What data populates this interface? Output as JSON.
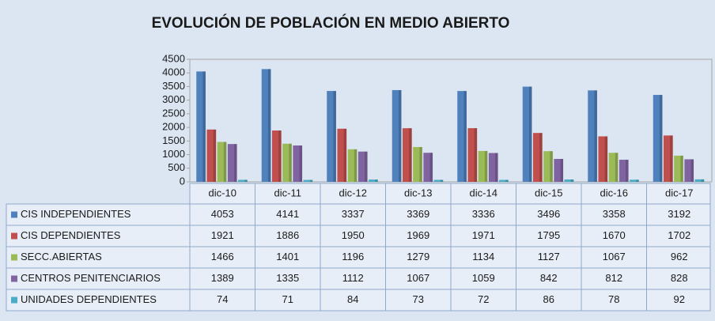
{
  "chart_data": {
    "type": "bar",
    "title": "EVOLUCIÓN DE POBLACIÓN EN MEDIO ABIERTO",
    "categories": [
      "dic-10",
      "dic-11",
      "dic-12",
      "dic-13",
      "dic-14",
      "dic-15",
      "dic-16",
      "dic-17"
    ],
    "series": [
      {
        "name": "CIS INDEPENDIENTES",
        "color": "#4f81bd",
        "values": [
          4053,
          4141,
          3337,
          3369,
          3336,
          3496,
          3358,
          3192
        ]
      },
      {
        "name": "CIS DEPENDIENTES",
        "color": "#c0504d",
        "values": [
          1921,
          1886,
          1950,
          1969,
          1971,
          1795,
          1670,
          1702
        ]
      },
      {
        "name": "SECC.ABIERTAS",
        "color": "#9bbb59",
        "values": [
          1466,
          1401,
          1196,
          1279,
          1134,
          1127,
          1067,
          962
        ]
      },
      {
        "name": "CENTROS PENITENCIARIOS",
        "color": "#8064a2",
        "values": [
          1389,
          1335,
          1112,
          1067,
          1059,
          842,
          812,
          828
        ]
      },
      {
        "name": "UNIDADES DEPENDIENTES",
        "color": "#4bacc6",
        "values": [
          74,
          71,
          84,
          73,
          72,
          86,
          78,
          92
        ]
      }
    ],
    "ylim": [
      0,
      4500
    ],
    "yticks": [
      0,
      500,
      1000,
      1500,
      2000,
      2500,
      3000,
      3500,
      4000,
      4500
    ],
    "grid": false
  }
}
